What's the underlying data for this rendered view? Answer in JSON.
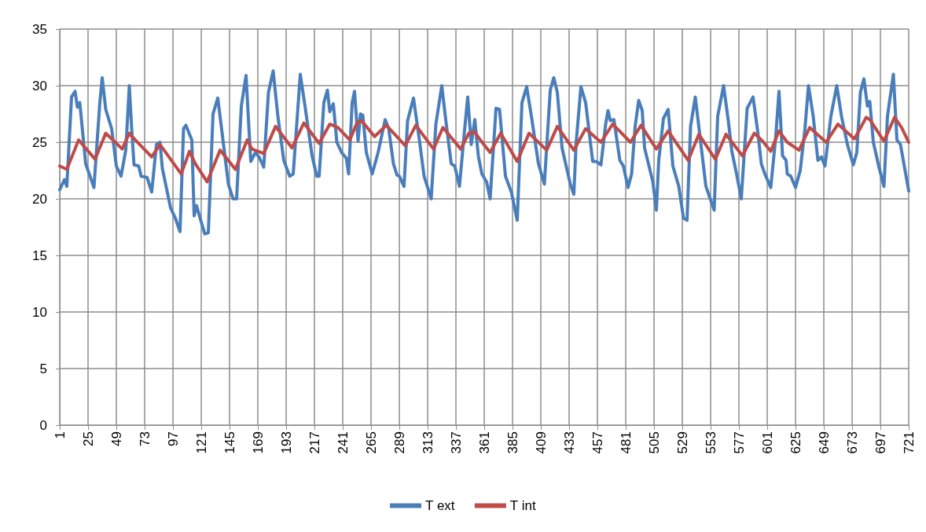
{
  "chart_data": {
    "type": "line",
    "xlim": [
      1,
      721
    ],
    "xticks": [
      1,
      25,
      49,
      73,
      97,
      121,
      145,
      169,
      193,
      217,
      241,
      265,
      289,
      313,
      337,
      361,
      385,
      409,
      433,
      457,
      481,
      505,
      529,
      553,
      577,
      601,
      625,
      649,
      673,
      697,
      721
    ],
    "ylim": [
      0,
      35
    ],
    "yticks": [
      0,
      5,
      10,
      15,
      20,
      25,
      30,
      35
    ],
    "grid": true,
    "legend": "bottom",
    "marker": "none",
    "line_style": "solid",
    "series": [
      {
        "name": "T ext",
        "color": "#4a7ebb",
        "x": [
          1,
          5,
          7,
          11,
          14,
          16,
          18,
          23,
          30,
          35,
          37,
          40,
          45,
          49,
          53,
          57,
          60,
          62,
          64,
          68,
          70,
          75,
          79,
          83,
          86,
          88,
          95,
          99,
          103,
          106,
          108,
          113,
          115,
          117,
          120,
          124,
          127,
          131,
          135,
          138,
          144,
          148,
          151,
          155,
          159,
          163,
          167,
          170,
          174,
          178,
          182,
          186,
          191,
          196,
          199,
          205,
          209,
          215,
          219,
          221,
          225,
          228,
          230,
          233,
          235,
          236,
          240,
          244,
          246,
          249,
          251,
          254,
          256,
          258,
          261,
          266,
          271,
          277,
          280,
          284,
          287,
          289,
          293,
          296,
          301,
          306,
          310,
          316,
          320,
          325,
          328,
          333,
          336,
          340,
          344,
          347,
          350,
          353,
          356,
          359,
          363,
          366,
          371,
          374,
          379,
          384,
          389,
          393,
          397,
          401,
          407,
          412,
          417,
          420,
          423,
          427,
          434,
          437,
          439,
          443,
          447,
          453,
          456,
          460,
          464,
          466,
          468,
          471,
          476,
          479,
          483,
          486,
          489,
          492,
          495,
          497,
          504,
          507,
          509,
          513,
          517,
          521,
          526,
          530,
          533,
          536,
          540,
          544,
          549,
          556,
          559,
          564,
          568,
          571,
          575,
          579,
          584,
          589,
          593,
          596,
          599,
          604,
          608,
          611,
          614,
          617,
          618,
          621,
          625,
          629,
          633,
          636,
          640,
          644,
          647,
          650,
          655,
          660,
          664,
          669,
          674,
          677,
          680,
          683,
          686,
          688,
          691,
          696,
          700,
          703,
          708,
          711,
          714,
          721
        ],
        "values": [
          20.8,
          21.7,
          21.1,
          29.0,
          29.5,
          28.1,
          28.5,
          23.1,
          21.0,
          28.5,
          30.7,
          27.9,
          26.2,
          22.9,
          22.0,
          24.3,
          30.0,
          26.2,
          23.0,
          22.9,
          22.0,
          21.9,
          20.6,
          24.8,
          25.0,
          22.7,
          19.2,
          18.3,
          17.1,
          26.2,
          26.5,
          25.2,
          18.5,
          19.4,
          18.3,
          16.9,
          17.0,
          27.5,
          28.9,
          26.4,
          21.3,
          20.0,
          20.0,
          28.2,
          30.9,
          23.3,
          24.1,
          23.7,
          22.8,
          29.4,
          31.3,
          27.3,
          23.4,
          22.0,
          22.2,
          31.0,
          28.2,
          23.8,
          22.0,
          22.0,
          28.5,
          29.6,
          27.7,
          28.4,
          26.2,
          25.0,
          24.1,
          23.6,
          22.2,
          28.5,
          29.5,
          25.1,
          27.5,
          27.4,
          24.1,
          22.2,
          24.1,
          27.0,
          26.2,
          23.1,
          22.1,
          22.0,
          21.1,
          26.9,
          28.9,
          25.2,
          22.0,
          20.0,
          26.6,
          30.0,
          27.3,
          23.1,
          22.9,
          21.1,
          25.7,
          29.0,
          24.8,
          27.0,
          23.8,
          22.2,
          21.5,
          20.0,
          28.0,
          27.9,
          22.0,
          20.6,
          18.1,
          28.5,
          29.9,
          27.3,
          23.1,
          21.3,
          29.6,
          30.7,
          29.4,
          24.5,
          21.3,
          20.4,
          25.0,
          29.9,
          28.5,
          23.3,
          23.3,
          23.0,
          26.6,
          27.8,
          26.9,
          27.0,
          23.4,
          22.9,
          21.0,
          22.2,
          26.4,
          28.7,
          27.8,
          24.5,
          21.5,
          19.0,
          23.4,
          27.1,
          27.9,
          22.9,
          21.1,
          18.3,
          18.1,
          26.4,
          29.0,
          25.5,
          21.1,
          19.0,
          27.3,
          30.0,
          26.9,
          24.2,
          22.2,
          20.0,
          28.0,
          29.0,
          25.9,
          23.1,
          22.2,
          21.0,
          25.2,
          29.5,
          23.8,
          23.4,
          22.2,
          22.0,
          21.0,
          22.5,
          26.2,
          30.0,
          27.3,
          23.4,
          23.7,
          22.9,
          27.3,
          30.0,
          27.3,
          24.8,
          23.0,
          24.1,
          29.4,
          30.6,
          28.2,
          28.6,
          25.0,
          22.7,
          21.1,
          27.3,
          31.0,
          25.2,
          24.8,
          20.7
        ]
      },
      {
        "name": "T int",
        "color": "#be4b48",
        "x": [
          1,
          7,
          17,
          31,
          40,
          54,
          60,
          66,
          79,
          86,
          104,
          111,
          116,
          126,
          137,
          150,
          160,
          164,
          174,
          184,
          198,
          208,
          221,
          230,
          237,
          247,
          253,
          257,
          268,
          278,
          294,
          303,
          318,
          326,
          341,
          348,
          353,
          357,
          366,
          375,
          389,
          399,
          414,
          423,
          437,
          447,
          460,
          470,
          485,
          494,
          507,
          517,
          534,
          543,
          557,
          566,
          580,
          590,
          597,
          604,
          611,
          618,
          628,
          637,
          651,
          661,
          675,
          685,
          688,
          700,
          709,
          715,
          721
        ],
        "values": [
          22.9,
          22.6,
          25.2,
          23.5,
          25.8,
          24.4,
          25.8,
          25.1,
          23.7,
          24.8,
          22.2,
          24.2,
          23.1,
          21.5,
          24.3,
          22.6,
          25.2,
          24.4,
          24.0,
          26.4,
          24.5,
          26.7,
          24.9,
          26.6,
          26.3,
          25.2,
          26.7,
          26.9,
          25.5,
          26.5,
          24.7,
          26.5,
          24.4,
          26.3,
          24.4,
          25.8,
          25.9,
          25.3,
          24.1,
          25.8,
          23.3,
          25.8,
          24.3,
          26.4,
          24.3,
          26.2,
          25.0,
          26.6,
          25.0,
          26.5,
          24.4,
          26.0,
          23.4,
          25.7,
          23.5,
          25.7,
          23.8,
          25.8,
          25.1,
          24.2,
          26.0,
          25.0,
          24.3,
          26.3,
          25.0,
          26.6,
          25.3,
          27.2,
          27.0,
          25.1,
          27.2,
          26.3,
          25.0
        ]
      }
    ]
  }
}
